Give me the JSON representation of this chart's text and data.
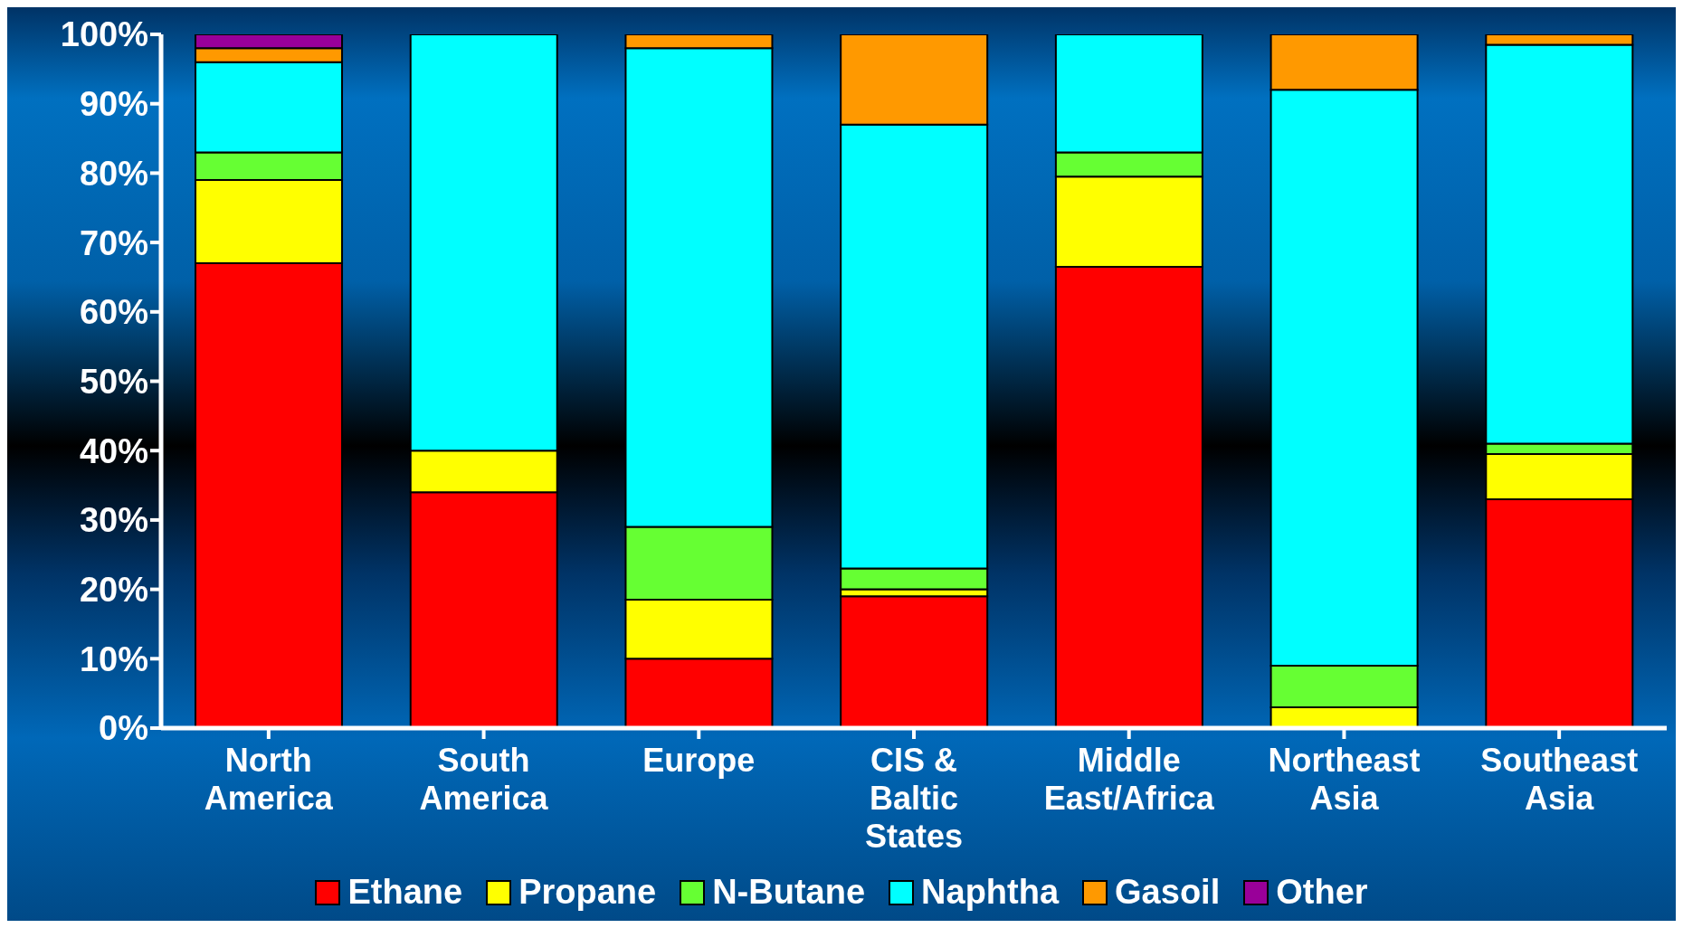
{
  "chart_data": {
    "type": "bar",
    "stacked": true,
    "categories": [
      "North America",
      "South America",
      "Europe",
      "CIS & Baltic States",
      "Middle East/Africa",
      "Northeast Asia",
      "Southeast Asia"
    ],
    "series": [
      {
        "name": "Ethane",
        "color": "#ff0000",
        "values": [
          67,
          34,
          10,
          19,
          66.5,
          0,
          33
        ]
      },
      {
        "name": "Propane",
        "color": "#ffff00",
        "values": [
          12,
          6,
          8.5,
          1,
          13,
          3,
          6.5
        ]
      },
      {
        "name": "N-Butane",
        "color": "#66ff33",
        "values": [
          4,
          0,
          10.5,
          3,
          3.5,
          6,
          1.5
        ]
      },
      {
        "name": "Naphtha",
        "color": "#00ffff",
        "values": [
          13,
          60,
          69,
          64,
          17,
          83,
          57.5
        ]
      },
      {
        "name": "Gasoil",
        "color": "#ff9900",
        "values": [
          2,
          0,
          2,
          13,
          0,
          8,
          1.5
        ]
      },
      {
        "name": "Other",
        "color": "#990099",
        "values": [
          2,
          0,
          0,
          0,
          0,
          0,
          0
        ]
      }
    ],
    "ylim": [
      0,
      100
    ],
    "yticks": [
      {
        "value": 0,
        "label": "0%"
      },
      {
        "value": 10,
        "label": "10%"
      },
      {
        "value": 20,
        "label": "20%"
      },
      {
        "value": 30,
        "label": "30%"
      },
      {
        "value": 40,
        "label": "40%"
      },
      {
        "value": 50,
        "label": "50%"
      },
      {
        "value": 60,
        "label": "60%"
      },
      {
        "value": 70,
        "label": "70%"
      },
      {
        "value": 80,
        "label": "80%"
      },
      {
        "value": 90,
        "label": "90%"
      },
      {
        "value": 100,
        "label": "100%"
      }
    ],
    "grid": false,
    "legend": "bottom"
  }
}
